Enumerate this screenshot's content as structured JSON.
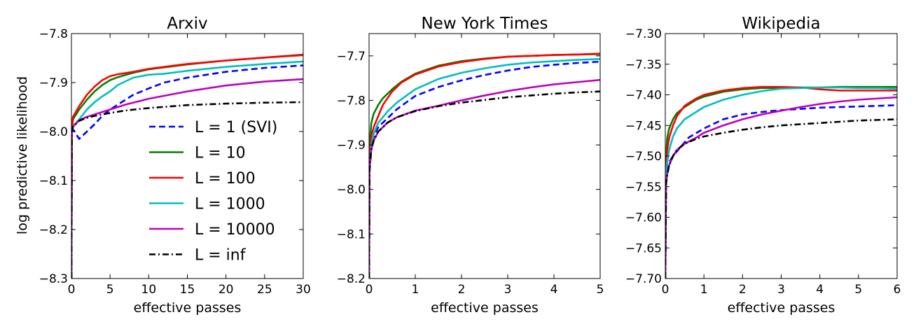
{
  "ylabel": "log predictive likelihood",
  "colors": {
    "L = 1 (SVI)": "#0000ff",
    "L = 10": "#008000",
    "L = 100": "#ff0000",
    "L = 1000": "#00bfbf",
    "L = 10000": "#bf00bf",
    "L = inf": "#000000"
  },
  "legend": {
    "placement": "lower-right of first panel",
    "entries": [
      "L = 1 (SVI)",
      "L = 10",
      "L = 100",
      "L = 1000",
      "L = 10000",
      "L = inf"
    ]
  },
  "chart_data": [
    {
      "type": "line",
      "title": "Arxiv",
      "xlabel": "effective passes",
      "ylabel": "log predictive likelihood",
      "xlim": [
        0,
        30
      ],
      "ylim": [
        -8.3,
        -7.8
      ],
      "xticks": [
        0,
        5,
        10,
        15,
        20,
        25,
        30
      ],
      "yticks": [
        -8.3,
        -8.2,
        -8.1,
        -8.0,
        -7.9,
        -7.8
      ],
      "xtick_labels": [
        "0",
        "5",
        "10",
        "15",
        "20",
        "25",
        "30"
      ],
      "ytick_labels": [
        "−8.3",
        "−8.2",
        "−8.1",
        "−8.0",
        "−7.9",
        "−7.8"
      ],
      "series": [
        {
          "name": "L = 1 (SVI)",
          "style": "dashed",
          "x": [
            0,
            0.05,
            0.2,
            1,
            2,
            3,
            4,
            5,
            6,
            8,
            10,
            12,
            15,
            20,
            25,
            30
          ],
          "y": [
            -8.3,
            -8.0,
            -7.995,
            -8.015,
            -8.0,
            -7.985,
            -7.968,
            -7.955,
            -7.945,
            -7.925,
            -7.912,
            -7.9,
            -7.89,
            -7.878,
            -7.87,
            -7.865
          ]
        },
        {
          "name": "L = 10",
          "style": "solid",
          "x": [
            0,
            0.05,
            0.2,
            1,
            2,
            3,
            4,
            5,
            6,
            8,
            10,
            15,
            20,
            25,
            30
          ],
          "y": [
            -8.3,
            -8.0,
            -7.975,
            -7.955,
            -7.935,
            -7.918,
            -7.905,
            -7.895,
            -7.889,
            -7.88,
            -7.873,
            -7.863,
            -7.855,
            -7.849,
            -7.843
          ]
        },
        {
          "name": "L = 100",
          "style": "solid",
          "x": [
            0,
            0.05,
            0.2,
            1,
            2,
            3,
            4,
            5,
            6,
            8,
            10,
            15,
            20,
            25,
            30
          ],
          "y": [
            -8.3,
            -7.995,
            -7.97,
            -7.948,
            -7.925,
            -7.908,
            -7.895,
            -7.887,
            -7.883,
            -7.878,
            -7.872,
            -7.862,
            -7.855,
            -7.849,
            -7.844
          ]
        },
        {
          "name": "L = 1000",
          "style": "solid",
          "x": [
            0,
            0.05,
            0.2,
            1,
            2,
            3,
            4,
            5,
            6,
            8,
            10,
            12,
            15,
            20,
            25,
            30
          ],
          "y": [
            -8.3,
            -8.0,
            -7.99,
            -7.975,
            -7.955,
            -7.94,
            -7.928,
            -7.918,
            -7.905,
            -7.89,
            -7.884,
            -7.882,
            -7.876,
            -7.868,
            -7.862,
            -7.857
          ]
        },
        {
          "name": "L = 10000",
          "style": "solid",
          "x": [
            0,
            0.05,
            0.2,
            1,
            2,
            3,
            5,
            7,
            10,
            15,
            20,
            25,
            30
          ],
          "y": [
            -8.3,
            -7.997,
            -7.99,
            -7.977,
            -7.97,
            -7.965,
            -7.955,
            -7.945,
            -7.933,
            -7.918,
            -7.906,
            -7.898,
            -7.893
          ]
        },
        {
          "name": "L = inf",
          "style": "dashdot",
          "x": [
            0,
            0.05,
            0.2,
            1,
            2,
            3,
            5,
            7,
            10,
            15,
            20,
            25,
            30
          ],
          "y": [
            -8.3,
            -7.997,
            -7.99,
            -7.978,
            -7.972,
            -7.968,
            -7.962,
            -7.957,
            -7.952,
            -7.946,
            -7.943,
            -7.941,
            -7.94
          ]
        }
      ]
    },
    {
      "type": "line",
      "title": "New York Times",
      "xlabel": "effective passes",
      "ylabel": "",
      "xlim": [
        0,
        5
      ],
      "ylim": [
        -8.2,
        -7.65
      ],
      "xticks": [
        0,
        1,
        2,
        3,
        4,
        5
      ],
      "yticks": [
        -8.2,
        -8.1,
        -8.0,
        -7.9,
        -7.8,
        -7.7
      ],
      "xtick_labels": [
        "0",
        "1",
        "2",
        "3",
        "4",
        "5"
      ],
      "ytick_labels": [
        "−8.2",
        "−8.1",
        "−8.0",
        "−7.9",
        "−7.8",
        "−7.7"
      ],
      "series": [
        {
          "name": "L = 1 (SVI)",
          "style": "dashed",
          "x": [
            0,
            0.01,
            0.05,
            0.1,
            0.2,
            0.4,
            0.6,
            1,
            1.5,
            2,
            2.5,
            3,
            3.5,
            4,
            4.5,
            5
          ],
          "y": [
            -8.2,
            -7.96,
            -7.91,
            -7.88,
            -7.86,
            -7.84,
            -7.82,
            -7.79,
            -7.77,
            -7.755,
            -7.743,
            -7.733,
            -7.725,
            -7.72,
            -7.716,
            -7.713
          ]
        },
        {
          "name": "L = 10",
          "style": "solid",
          "x": [
            0,
            0.01,
            0.05,
            0.1,
            0.2,
            0.3,
            0.5,
            0.7,
            1,
            1.5,
            2,
            2.5,
            3,
            3.5,
            4,
            4.5,
            5
          ],
          "y": [
            -8.2,
            -7.9,
            -7.85,
            -7.83,
            -7.81,
            -7.795,
            -7.775,
            -7.758,
            -7.74,
            -7.722,
            -7.712,
            -7.706,
            -7.702,
            -7.7,
            -7.698,
            -7.697,
            -7.696
          ]
        },
        {
          "name": "L = 100",
          "style": "solid",
          "x": [
            0,
            0.01,
            0.05,
            0.1,
            0.2,
            0.3,
            0.5,
            0.7,
            1,
            1.5,
            2,
            2.5,
            3,
            3.5,
            4,
            4.5,
            5
          ],
          "y": [
            -8.2,
            -7.93,
            -7.88,
            -7.86,
            -7.835,
            -7.81,
            -7.78,
            -7.76,
            -7.742,
            -7.724,
            -7.714,
            -7.707,
            -7.702,
            -7.7,
            -7.698,
            -7.697,
            -7.695
          ]
        },
        {
          "name": "L = 1000",
          "style": "solid",
          "x": [
            0,
            0.01,
            0.05,
            0.1,
            0.2,
            0.4,
            0.6,
            1,
            1.5,
            2,
            2.5,
            3,
            3.5,
            4,
            4.5,
            5
          ],
          "y": [
            -8.2,
            -7.95,
            -7.9,
            -7.875,
            -7.85,
            -7.825,
            -7.805,
            -7.775,
            -7.752,
            -7.738,
            -7.728,
            -7.72,
            -7.715,
            -7.712,
            -7.709,
            -7.707
          ]
        },
        {
          "name": "L = 10000",
          "style": "solid",
          "x": [
            0,
            0.01,
            0.05,
            0.1,
            0.2,
            0.4,
            0.6,
            1,
            1.5,
            2,
            2.5,
            3,
            3.5,
            4,
            4.5,
            5
          ],
          "y": [
            -8.2,
            -7.95,
            -7.91,
            -7.89,
            -7.87,
            -7.85,
            -7.838,
            -7.823,
            -7.812,
            -7.8,
            -7.789,
            -7.779,
            -7.771,
            -7.764,
            -7.759,
            -7.754
          ]
        },
        {
          "name": "L = inf",
          "style": "dashdot",
          "x": [
            0,
            0.01,
            0.05,
            0.1,
            0.2,
            0.4,
            0.6,
            1,
            1.5,
            2,
            2.5,
            3,
            3.5,
            4,
            4.5,
            5
          ],
          "y": [
            -8.2,
            -7.95,
            -7.91,
            -7.89,
            -7.87,
            -7.85,
            -7.838,
            -7.824,
            -7.813,
            -7.805,
            -7.799,
            -7.793,
            -7.789,
            -7.785,
            -7.782,
            -7.78
          ]
        }
      ]
    },
    {
      "type": "line",
      "title": "Wikipedia",
      "xlabel": "effective passes",
      "ylabel": "",
      "xlim": [
        0,
        6
      ],
      "ylim": [
        -7.7,
        -7.3
      ],
      "xticks": [
        0,
        1,
        2,
        3,
        4,
        5,
        6
      ],
      "yticks": [
        -7.7,
        -7.65,
        -7.6,
        -7.55,
        -7.5,
        -7.45,
        -7.4,
        -7.35,
        -7.3
      ],
      "xtick_labels": [
        "0",
        "1",
        "2",
        "3",
        "4",
        "5",
        "6"
      ],
      "ytick_labels": [
        "−7.70",
        "−7.65",
        "−7.60",
        "−7.55",
        "−7.50",
        "−7.45",
        "−7.40",
        "−7.35",
        "−7.30"
      ],
      "series": [
        {
          "name": "L = 1 (SVI)",
          "style": "dashed",
          "x": [
            0,
            0.02,
            0.1,
            0.2,
            0.4,
            0.6,
            1,
            1.5,
            2,
            2.5,
            3,
            3.5,
            4,
            4.5,
            5,
            5.5,
            6
          ],
          "y": [
            -7.7,
            -7.53,
            -7.51,
            -7.5,
            -7.485,
            -7.47,
            -7.455,
            -7.44,
            -7.432,
            -7.428,
            -7.425,
            -7.423,
            -7.421,
            -7.42,
            -7.419,
            -7.418,
            -7.417
          ]
        },
        {
          "name": "L = 10",
          "style": "solid",
          "x": [
            0,
            0.02,
            0.05,
            0.1,
            0.2,
            0.3,
            0.5,
            0.8,
            1,
            1.5,
            2,
            2.5,
            3,
            3.5,
            4,
            4.5,
            5,
            5.5,
            6
          ],
          "y": [
            -7.7,
            -7.5,
            -7.47,
            -7.455,
            -7.44,
            -7.43,
            -7.42,
            -7.408,
            -7.403,
            -7.395,
            -7.391,
            -7.389,
            -7.389,
            -7.388,
            -7.388,
            -7.387,
            -7.387,
            -7.387,
            -7.387
          ]
        },
        {
          "name": "L = 100",
          "style": "solid",
          "x": [
            0,
            0.02,
            0.05,
            0.1,
            0.2,
            0.3,
            0.5,
            0.8,
            1,
            1.5,
            2,
            2.5,
            3,
            3.5,
            4,
            4.5,
            5,
            5.5,
            6
          ],
          "y": [
            -7.7,
            -7.52,
            -7.49,
            -7.47,
            -7.45,
            -7.435,
            -7.418,
            -7.406,
            -7.4,
            -7.393,
            -7.389,
            -7.387,
            -7.387,
            -7.388,
            -7.391,
            -7.393,
            -7.393,
            -7.393,
            -7.393
          ]
        },
        {
          "name": "L = 1000",
          "style": "solid",
          "x": [
            0,
            0.02,
            0.05,
            0.1,
            0.2,
            0.3,
            0.5,
            0.8,
            1,
            1.5,
            2,
            2.5,
            3,
            3.5,
            4,
            4.5,
            5,
            5.5,
            6
          ],
          "y": [
            -7.7,
            -7.53,
            -7.51,
            -7.49,
            -7.468,
            -7.455,
            -7.44,
            -7.428,
            -7.42,
            -7.408,
            -7.4,
            -7.394,
            -7.39,
            -7.389,
            -7.388,
            -7.388,
            -7.389,
            -7.389,
            -7.39
          ]
        },
        {
          "name": "L = 10000",
          "style": "solid",
          "x": [
            0,
            0.02,
            0.05,
            0.1,
            0.2,
            0.3,
            0.5,
            0.8,
            1,
            1.5,
            2,
            2.5,
            3,
            3.5,
            4,
            4.5,
            5,
            5.5,
            6
          ],
          "y": [
            -7.7,
            -7.545,
            -7.53,
            -7.515,
            -7.5,
            -7.49,
            -7.48,
            -7.47,
            -7.462,
            -7.45,
            -7.44,
            -7.432,
            -7.426,
            -7.42,
            -7.415,
            -7.411,
            -7.408,
            -7.406,
            -7.404
          ]
        },
        {
          "name": "L = inf",
          "style": "dashdot",
          "x": [
            0,
            0.02,
            0.05,
            0.1,
            0.2,
            0.3,
            0.5,
            0.8,
            1,
            1.5,
            2,
            2.5,
            3,
            3.5,
            4,
            4.5,
            5,
            5.5,
            6
          ],
          "y": [
            -7.7,
            -7.545,
            -7.53,
            -7.515,
            -7.5,
            -7.49,
            -7.48,
            -7.472,
            -7.468,
            -7.462,
            -7.457,
            -7.453,
            -7.45,
            -7.448,
            -7.446,
            -7.444,
            -7.442,
            -7.441,
            -7.44
          ]
        }
      ]
    }
  ]
}
